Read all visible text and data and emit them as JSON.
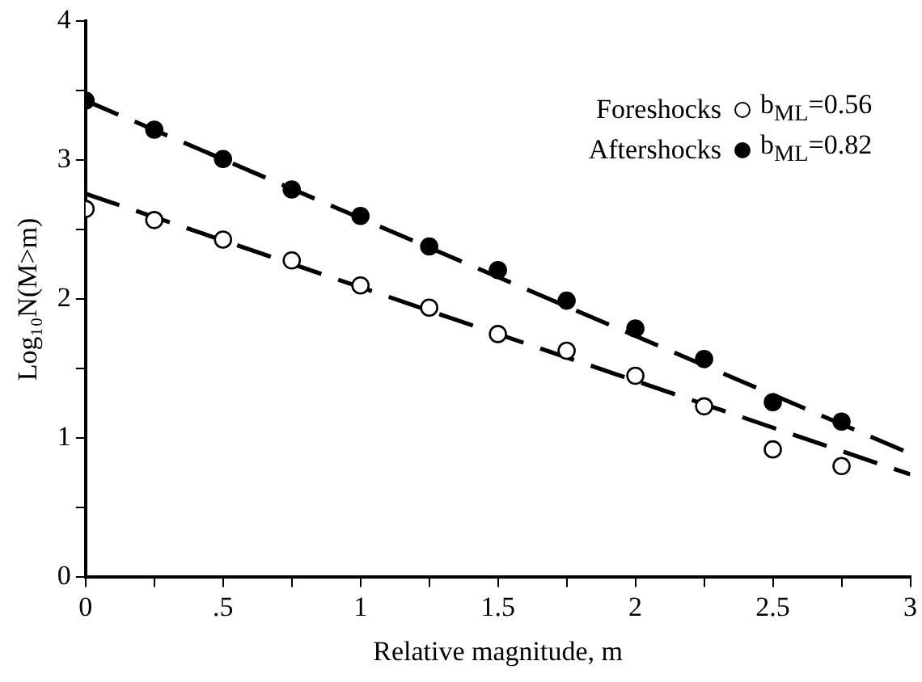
{
  "chart_data": {
    "type": "scatter",
    "xlabel": "Relative magnitude, m",
    "ylabel": "Log₁₀N(M>m)",
    "xlim": [
      0,
      3
    ],
    "ylim": [
      0,
      4
    ],
    "xticks": [
      0,
      {
        "value": 0.25,
        "label": null
      },
      {
        "value": 0.5,
        "label": ".5"
      },
      {
        "value": 0.75,
        "label": null
      },
      1,
      {
        "value": 1.25,
        "label": null
      },
      1.5,
      {
        "value": 1.75,
        "label": null
      },
      2,
      {
        "value": 2.25,
        "label": null
      },
      2.5,
      {
        "value": 2.75,
        "label": null
      },
      3
    ],
    "yticks": [
      0,
      {
        "value": 0.5,
        "label": null
      },
      1,
      {
        "value": 1.5,
        "label": null
      },
      2,
      {
        "value": 2.5,
        "label": null
      },
      3,
      {
        "value": 3.5,
        "label": null
      },
      4
    ],
    "grid": false,
    "legend": "top right",
    "marker": "circle",
    "series": [
      {
        "name": "Foreshocks",
        "color": "#ffffff",
        "x": [
          0,
          0.25,
          0.5,
          0.75,
          1,
          1.25,
          1.5,
          1.75,
          2,
          2.25,
          2.5,
          2.75
        ],
        "values": [
          2.65,
          2.57,
          2.43,
          2.28,
          2.1,
          1.94,
          1.75,
          1.63,
          1.45,
          1.23,
          0.92,
          0.8
        ]
      },
      {
        "name": "Aftershocks",
        "color": "#000000",
        "x": [
          0,
          0.25,
          0.5,
          0.75,
          1,
          1.25,
          1.5,
          1.75,
          2,
          2.25,
          2.5,
          2.75
        ],
        "values": [
          3.43,
          3.22,
          3.01,
          2.79,
          2.6,
          2.38,
          2.21,
          1.99,
          1.79,
          1.57,
          1.26,
          1.12
        ]
      },
      {
        "type": "line",
        "color": "#000000",
        "line_style": "dashed",
        "marker": "none",
        "x": [
          0,
          3
        ],
        "values": [
          2.76,
          0.74
        ]
      },
      {
        "type": "line",
        "color": "#000000",
        "line_style": "dashed",
        "marker": "none",
        "x": [
          0,
          3
        ],
        "values": [
          3.43,
          0.89
        ]
      }
    ],
    "annotations": [
      "b$_{ML}$=0.56",
      "b$_{ML}$=0.82"
    ]
  }
}
